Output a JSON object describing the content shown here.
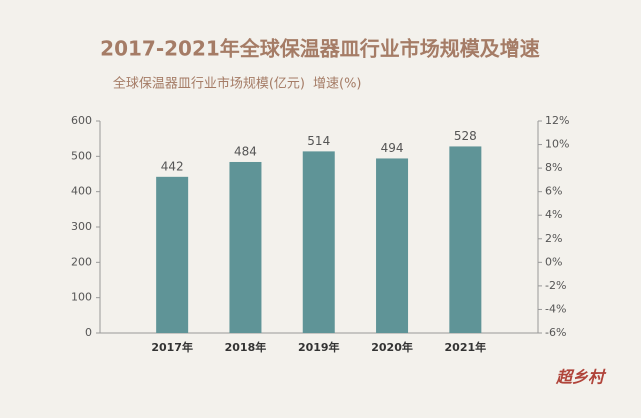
{
  "chart_data": {
    "type": "bar",
    "title": "2017-2021年全球保温器皿行业市场规模及增速",
    "legend": [
      "全球保温器皿行业市场规模(亿元)",
      "增速(%)"
    ],
    "categories": [
      "2017年",
      "2018年",
      "2019年",
      "2020年",
      "2021年"
    ],
    "values": [
      442,
      484,
      514,
      494,
      528
    ],
    "color": "#5f9497",
    "ylim": [
      0,
      600
    ],
    "yticks": [
      0,
      100,
      200,
      300,
      400,
      500,
      600
    ],
    "y2lim": [
      -6,
      12
    ],
    "y2ticks": [
      {
        "value": -6,
        "label": "-6%"
      },
      {
        "value": -4,
        "label": "-4%"
      },
      {
        "value": -2,
        "label": "-2%"
      },
      {
        "value": 0,
        "label": "0%"
      },
      {
        "value": 2,
        "label": "2%"
      },
      {
        "value": 4,
        "label": "4%"
      },
      {
        "value": 6,
        "label": "6%"
      },
      {
        "value": 8,
        "label": "8%"
      },
      {
        "value": 10,
        "label": "10%"
      },
      {
        "value": 12,
        "label": "12%"
      }
    ],
    "watermark": "超乡村"
  }
}
